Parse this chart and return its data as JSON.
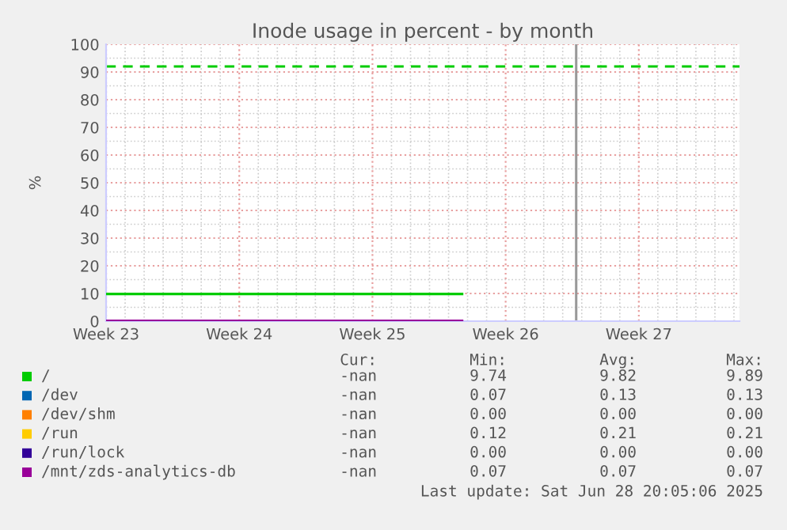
{
  "chart_data": {
    "type": "line",
    "title": "Inode usage in percent - by month",
    "ylabel": "%",
    "x": [
      "2025-06-02",
      "2025-06-20T17:00"
    ],
    "series": [
      {
        "name": "/",
        "color": "#00cc00",
        "values": [
          9.8,
          9.8
        ]
      },
      {
        "name": "/dev",
        "color": "#0066b3",
        "values": [
          null,
          null
        ]
      },
      {
        "name": "/dev/shm",
        "color": "#ff8000",
        "values": [
          null,
          null
        ]
      },
      {
        "name": "/run",
        "color": "#ffcc00",
        "values": [
          null,
          null
        ]
      },
      {
        "name": "/run/lock",
        "color": "#330099",
        "values": [
          null,
          null
        ]
      },
      {
        "name": "/mnt/zds-analytics-db",
        "color": "#990099",
        "values": [
          0.1,
          0.1
        ]
      }
    ],
    "xlim": [
      "2025-06-02",
      "2025-07-05T07:00"
    ],
    "xticks": [
      {
        "value": "2025-06-02",
        "label": "Week 23"
      },
      {
        "value": "2025-06-09",
        "label": "Week 24"
      },
      {
        "value": "2025-06-16",
        "label": "Week 25"
      },
      {
        "value": "2025-06-23",
        "label": "Week 26"
      },
      {
        "value": "2025-06-30",
        "label": "Week 27"
      }
    ],
    "ylim": [
      0,
      100
    ],
    "yticks": [
      0,
      10,
      20,
      30,
      40,
      50,
      60,
      70,
      80,
      90,
      100
    ],
    "ref_lines": [
      {
        "axis": "y",
        "value": 92,
        "color": "#00cc00",
        "line_style": "dashed"
      },
      {
        "axis": "x",
        "value": "2025-06-26T17:00",
        "color": "#999999",
        "line_style": "solid"
      }
    ],
    "grid": true,
    "legend": "bottom",
    "marker": "none",
    "line_style": "solid",
    "annotations": [
      "Cur:",
      "Min:",
      "Avg:",
      "Max:",
      "-nan",
      "9.74",
      "9.82",
      "9.89",
      "-nan",
      "0.07",
      "0.13",
      "0.13",
      "-nan",
      "0.00",
      "0.00",
      "0.00",
      "-nan",
      "0.12",
      "0.21",
      "0.21",
      "-nan",
      "0.00",
      "0.00",
      "0.00",
      "-nan",
      "0.07",
      "0.07",
      "0.07",
      "Last update: Sat Jun 28 20:05:06 2025"
    ]
  }
}
